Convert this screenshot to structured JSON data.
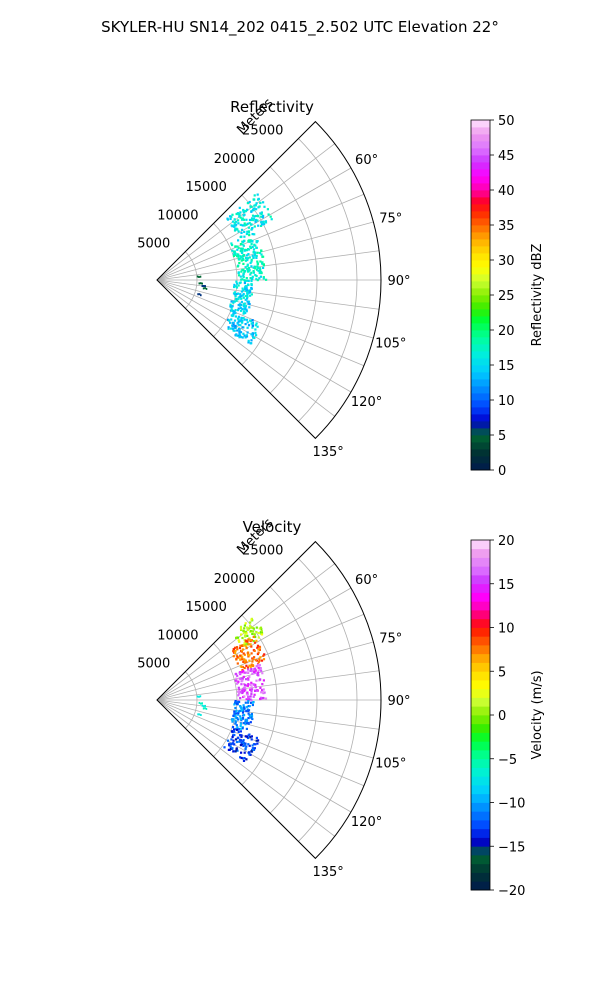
{
  "suptitle": "SKYLER-HU  SN14_202  0415_2.502 UTC Elevation 22°",
  "chart_data": [
    {
      "type": "polar sector scatter (radar PPI)",
      "title": "Reflectivity",
      "radial_label": "Meters",
      "radial_ticks": [
        5000,
        10000,
        15000,
        20000,
        25000
      ],
      "radial_tick_labels": [
        "5000",
        "10000",
        "15000",
        "20000",
        "25000"
      ],
      "r_lim": [
        0,
        28000
      ],
      "theta_range_deg": [
        45,
        135
      ],
      "angular_ticks_deg": [
        60,
        75,
        90,
        105,
        120,
        135
      ],
      "angular_tick_labels": [
        "60°",
        "75°",
        "90°",
        "105°",
        "120°",
        "135°"
      ],
      "colorbar": {
        "label": "Reflectivity dBZ",
        "range": [
          0,
          50
        ],
        "ticks": [
          0,
          5,
          10,
          15,
          20,
          25,
          30,
          35,
          40,
          45,
          50
        ],
        "tick_labels": [
          "0",
          "5",
          "10",
          "15",
          "20",
          "25",
          "30",
          "35",
          "40",
          "45",
          "50"
        ],
        "bin_step": 1
      },
      "echo_regions": [
        {
          "theta": [
            48,
            62
          ],
          "r": [
            11500,
            16500
          ],
          "value": 16
        },
        {
          "theta": [
            62,
            90
          ],
          "r": [
            10000,
            13500
          ],
          "value": 17
        },
        {
          "theta": [
            90,
            112
          ],
          "r": [
            9500,
            12000
          ],
          "value": 15
        },
        {
          "theta": [
            112,
            125
          ],
          "r": [
            10000,
            14000
          ],
          "value": 14
        }
      ],
      "near_range_points": [
        {
          "theta": 84,
          "r": 5000,
          "value": 5
        },
        {
          "theta": 93,
          "r": 5200,
          "value": 5
        },
        {
          "theta": 96,
          "r": 5600,
          "value": 6
        },
        {
          "theta": 99,
          "r": 5800,
          "value": 5
        },
        {
          "theta": 108,
          "r": 5300,
          "value": 6
        }
      ]
    },
    {
      "type": "polar sector scatter (radar PPI)",
      "title": "Velocity",
      "radial_label": "Meters",
      "radial_ticks": [
        5000,
        10000,
        15000,
        20000,
        25000
      ],
      "radial_tick_labels": [
        "5000",
        "10000",
        "15000",
        "20000",
        "25000"
      ],
      "r_lim": [
        0,
        28000
      ],
      "theta_range_deg": [
        45,
        135
      ],
      "angular_ticks_deg": [
        60,
        75,
        90,
        105,
        120,
        135
      ],
      "angular_tick_labels": [
        "60°",
        "75°",
        "90°",
        "105°",
        "120°",
        "135°"
      ],
      "colorbar": {
        "label": "Velocity (m/s)",
        "range": [
          -20,
          20
        ],
        "ticks": [
          -20,
          -15,
          -10,
          -5,
          0,
          5,
          10,
          15,
          20
        ],
        "tick_labels": [
          "−20",
          "−15",
          "−10",
          "−5",
          "0",
          "5",
          "10",
          "15",
          "20"
        ],
        "bin_step": 1
      },
      "echo_regions": [
        {
          "theta": [
            48,
            58
          ],
          "r": [
            12500,
            16000
          ],
          "value": 1
        },
        {
          "theta": [
            55,
            70
          ],
          "r": [
            11000,
            14500
          ],
          "value": 8
        },
        {
          "theta": [
            70,
            90
          ],
          "r": [
            10000,
            13500
          ],
          "value": 16
        },
        {
          "theta": [
            90,
            110
          ],
          "r": [
            9500,
            12000
          ],
          "value": -11
        },
        {
          "theta": [
            110,
            125
          ],
          "r": [
            10000,
            13500
          ],
          "value": -13
        }
      ],
      "near_range_points": [
        {
          "theta": 84,
          "r": 5000,
          "value": -7
        },
        {
          "theta": 93,
          "r": 5200,
          "value": -6
        },
        {
          "theta": 96,
          "r": 5600,
          "value": -7
        },
        {
          "theta": 99,
          "r": 5800,
          "value": -6
        },
        {
          "theta": 108,
          "r": 5300,
          "value": -7
        }
      ]
    }
  ]
}
